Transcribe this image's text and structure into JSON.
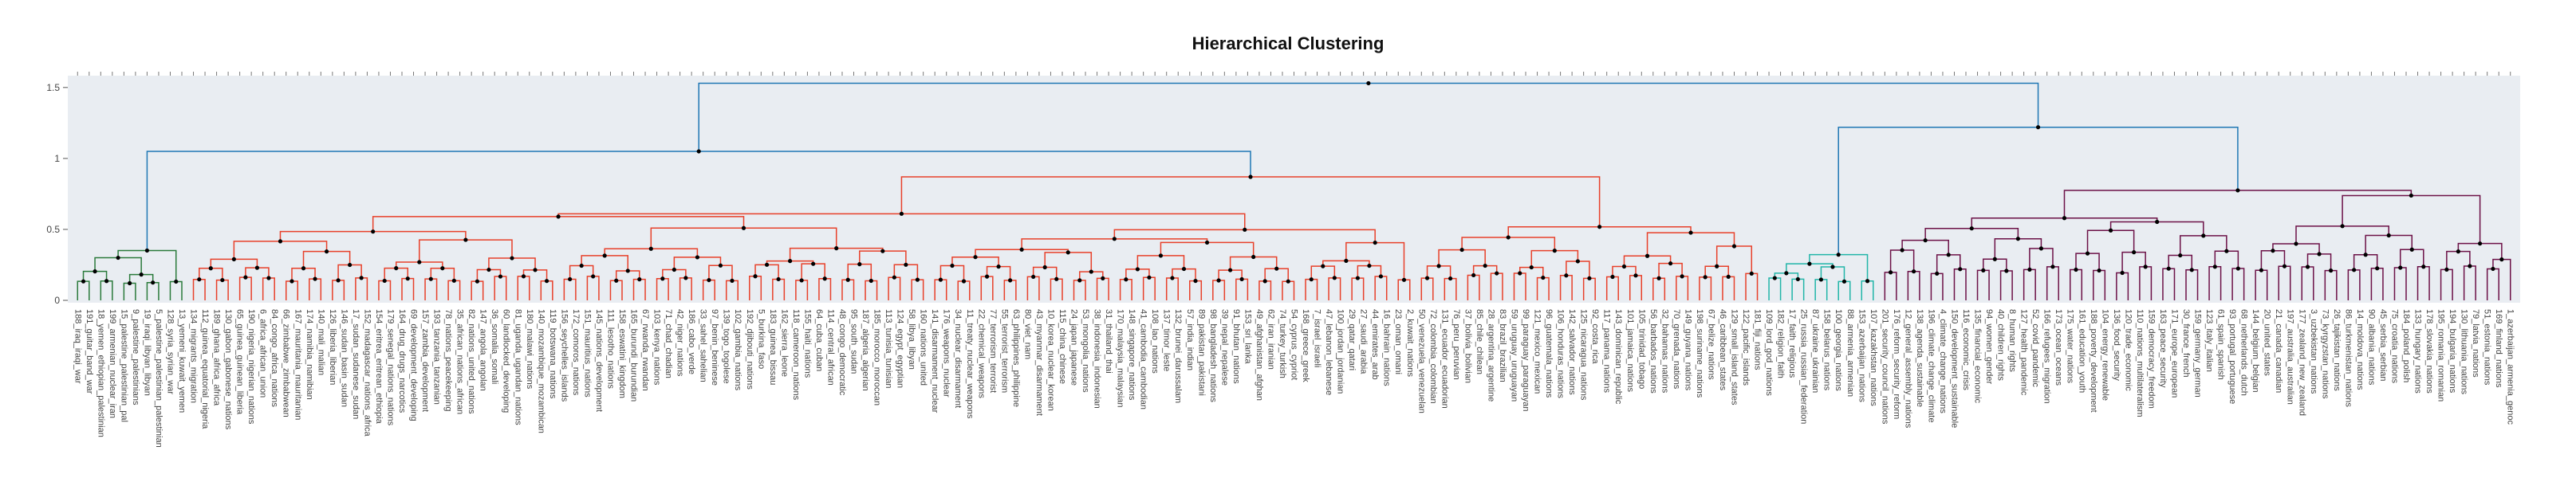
{
  "chart_data": {
    "type": "dendrogram",
    "title": "Hierarchical Clustering",
    "xlabel": "",
    "ylabel": "",
    "ylim": [
      0,
      1.6
    ],
    "y_ticks": [
      0,
      0.5,
      1,
      1.5
    ],
    "y_tick_labels": [
      "0",
      "0.5",
      "1",
      "1.5"
    ],
    "grid": false,
    "background_color": "#e9edf2",
    "cluster_colors": [
      "#2a7a3b",
      "#e8402a",
      "#21b5a8",
      "#6c1147",
      "#1f77b4"
    ],
    "clusters": [
      {
        "color": "#2a7a3b",
        "leaves": [
          "188_iraq_iraqi_war",
          "191_guitar_band_war",
          "18_yemen_ethiopian_palestinian",
          "199_armenian_nuclear_iran",
          "15_palestine_palestinian_pal",
          "9_palestine_palestinians",
          "19_iraqi_libyan_libyan",
          "5_palestine_palestinian_palestinian",
          "128_syria_syrian_war",
          "13_yemeni_kuwait_yemen"
        ]
      },
      {
        "color": "#e8402a",
        "leaves": [
          "134_migrants_migration",
          "112_guinea_equatorial_nigeria",
          "189_ghana_africa_africa",
          "130_gabon_gabonese_nations",
          "65_guinea_guinean_liberia",
          "190_nigeria_nigerian_nations",
          "6_africa_african_union",
          "84_congo_africa_nations",
          "66_zimbabwe_zimbabwean",
          "167_mauritania_mauritanian",
          "174_namibia_namibian",
          "140_mali_malian",
          "126_liberia_liberian",
          "146_sudan_basin_sudan",
          "17_sudan_sudanese_sudan",
          "152_madagascar_nations_africa",
          "154_eritrea_eritrean_ethiopia",
          "179_senegal_nations_nations",
          "164_drug_drugs_narcotics",
          "69_development_developing",
          "157_zambia_development",
          "193_tanzania_tanzanian",
          "78_nations_peacekeeping",
          "35_african_nations_african",
          "82_nations_united_nations",
          "147_angola_angolan",
          "36_somalia_somali",
          "60_landlocked_developing",
          "81_uganda_ugandan_nations",
          "180_malawi_nations",
          "140_mozambique_mozambican",
          "119_botswana_nations",
          "156_seychelles_islands",
          "172_comoros_nations",
          "151_mauritius_nations",
          "145_nations_development",
          "111_lesotho_nations",
          "158_eswatini_kingdom",
          "165_burundi_burundian",
          "67_rwanda_rwandan",
          "103_kenya_nations",
          "71_chad_chadian",
          "42_niger_nations",
          "186_cabo_verde",
          "33_sahel_sahelian",
          "97_benin_beninese",
          "139_togo_togolese",
          "102_gambia_nations",
          "192_djibouti_nations",
          "5_burkina_faso",
          "183_guinea_bissau",
          "162_sierra_leone",
          "118_cameroon_nations",
          "155_haiti_nations",
          "64_cuba_cuban",
          "114_central_african",
          "48_congo_democratic",
          "95_south_sudan",
          "187_algeria_algerian",
          "185_morocco_moroccan",
          "113_tunisia_tunisian",
          "124_egypt_egyptian",
          "58_libya_libyan",
          "160_nations_united",
          "141_disarmament_nuclear",
          "176_weapons_nuclear",
          "34_nuclear_disarmament",
          "11_treaty_nuclear_weapons",
          "22_chemical_weapons",
          "77_terrorism_terrorist",
          "55_terrorist_terrorism",
          "63_philippines_philippine",
          "80_viet_nam",
          "43_myanmar_disarmament",
          "10_korea_nuclear_korean",
          "115_china_chinese",
          "24_japan_japanese",
          "53_mongolia_nations",
          "38_indonesia_indonesian",
          "31_thailand_thai",
          "170_malaysia_malaysian",
          "148_singapore_nations",
          "41_cambodia_cambodian",
          "108_lao_nations",
          "137_timor_leste",
          "132_brunei_darussalam",
          "57_india_indian",
          "89_pakistan_pakistani",
          "98_bangladesh_nations",
          "39_nepal_nepalese",
          "91_bhutan_nations",
          "153_sri_lanka",
          "49_afghanistan_afghan",
          "62_iran_iranian",
          "74_turkey_turkish",
          "54_cyprus_cypriot",
          "168_greece_greek",
          "7_israel_israeli",
          "47_lebanon_lebanese",
          "100_jordan_jordanian",
          "29_qatar_qatari",
          "27_saudi_arabia",
          "44_emirates_arab",
          "16_bahrain_nations",
          "23_oman_omani",
          "2_kuwait_nations"
        ]
      },
      {
        "color": "#e8402a",
        "leaves": [
          "50_venezuela_venezuelan",
          "72_colombia_colombian",
          "131_ecuador_ecuadorian",
          "76_peru_peruvian",
          "37_bolivia_bolivian",
          "85_chile_chilean",
          "28_argentina_argentine",
          "83_brazil_brazilian",
          "59_uruguay_uruguayan",
          "99_paraguay_paraguayan",
          "121_mexico_mexican",
          "96_guatemala_nations",
          "106_honduras_nations",
          "142_salvador_nations",
          "125_nicaragua_nations",
          "92_costa_rica",
          "117_panama_nations",
          "143_dominican_republic",
          "101_jamaica_nations",
          "105_trinidad_tobago",
          "56_barbados_nations",
          "32_bahamas_nations",
          "70_grenada_nations",
          "149_guyana_nations",
          "198_suriname_nations",
          "67_belize_nations",
          "46_caribbean_states",
          "129_small_island_states",
          "122_pacific_islands",
          "181_fiji_nations"
        ]
      },
      {
        "color": "#21b5a8",
        "leaves": [
          "109_lord_god_nations",
          "182_religion_faith",
          "17_faith_religious",
          "25_russia_russian_federation",
          "87_ukraine_ukrainian",
          "158_belarus_nations",
          "100_georgia_nations",
          "88_armenia_armenian",
          "153_azerbaijan_nations",
          "107_kazakhstan_nations"
        ]
      },
      {
        "color": "#6c1147",
        "leaves": [
          "201_security_council_nations",
          "176_reform_security_reform",
          "12_general_assembly_nations",
          "138_agenda_sustainable",
          "196_climate_change_climate",
          "4_climate_change_nations",
          "150_development_sustainable",
          "116_economic_crisis",
          "135_financial_economic",
          "94_women_gender",
          "40_children_rights",
          "8_human_rights",
          "127_health_pandemic",
          "52_covid_pandemic",
          "166_refugees_migration",
          "173_ocean_oceans",
          "175_water_nations",
          "161_education_youth",
          "188_poverty_development",
          "104_energy_renewable",
          "136_food_security",
          "120_trade_economic",
          "110_nations_multilateralism",
          "159_democracy_freedom",
          "163_peace_security",
          "171_europe_european",
          "30_france_french",
          "159_germany_german",
          "123_italy_italian",
          "61_spain_spanish",
          "93_portugal_portuguese",
          "68_netherlands_dutch",
          "144_belgium_belgian",
          "20_united_states",
          "21_canada_canadian",
          "197_australia_australian",
          "177_zealand_new_zealand",
          "3_uzbekistan_nations",
          "73_kyrgyzstan_nations",
          "26_tajikistan_nations",
          "86_turkmenistan_nations",
          "14_moldova_nations",
          "90_albania_nations",
          "45_serbia_serbian",
          "75_croatia_nations",
          "184_poland_polish",
          "133_hungary_nations",
          "178_slovakia_nations",
          "195_romania_romanian",
          "194_bulgaria_nations",
          "130_lithuania_nations",
          "79_latvia_nations",
          "51_estonia_nations",
          "169_finland_nations",
          "1_azerbaijan_armenia_genoc"
        ]
      }
    ]
  }
}
